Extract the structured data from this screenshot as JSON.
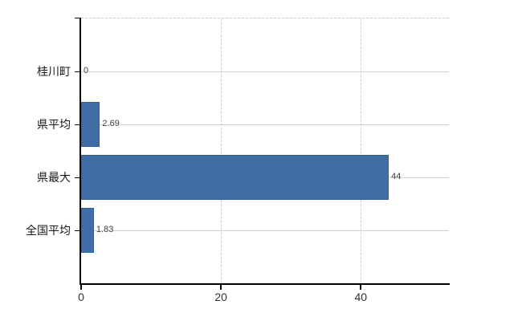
{
  "chart_data": {
    "type": "bar",
    "orientation": "horizontal",
    "title": "",
    "categories": [
      "桂川町",
      "県平均",
      "県最大",
      "全国平均"
    ],
    "values": [
      0,
      2.69,
      44,
      1.83
    ],
    "value_labels": [
      "0",
      "2.69",
      "44",
      "1.83"
    ],
    "x_ticks": [
      0,
      20,
      40
    ],
    "xlim": [
      0,
      52.6
    ],
    "grid": true,
    "legend": false,
    "colors": {
      "bar": "#3f6da4",
      "bar_border": "#31609a",
      "grid_horizontal": "#ccd5c8",
      "grid_vertical": "#cdcdcd",
      "plot_top_border": "#c9c9c9",
      "axis": "#000000",
      "category_label": "#1a1a1a",
      "tick_label": "#333333",
      "value_label": "#3d3d3d",
      "background": "#ffffff"
    }
  }
}
